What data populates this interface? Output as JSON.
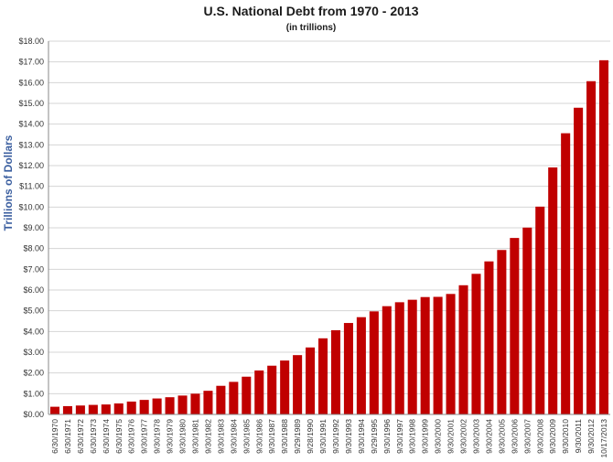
{
  "chart_data": {
    "type": "bar",
    "title": "U.S. National Debt from 1970 - 2013",
    "subtitle": "(in trillions)",
    "xlabel": "",
    "ylabel": "Trillions  of  Dollars",
    "ylim": [
      0,
      18
    ],
    "ytick_step": 1,
    "ytick_prefix": "$",
    "grid": true,
    "bar_color": "#c00000",
    "categories": [
      "6/30/1970",
      "6/30/1971",
      "6/30/1972",
      "6/30/1973",
      "6/30/1974",
      "6/30/1975",
      "6/30/1976",
      "9/30/1977",
      "9/30/1978",
      "9/30/1979",
      "9/30/1980",
      "9/30/1981",
      "9/30/1982",
      "9/30/1983",
      "9/30/1984",
      "9/30/1985",
      "9/30/1986",
      "9/30/1987",
      "9/30/1988",
      "9/29/1989",
      "9/28/1990",
      "9/30/1991",
      "9/30/1992",
      "9/30/1993",
      "9/30/1994",
      "9/29/1995",
      "9/30/1996",
      "9/30/1997",
      "9/30/1998",
      "9/30/1999",
      "9/30/2000",
      "9/30/2001",
      "9/30/2002",
      "9/30/2003",
      "9/30/2004",
      "9/30/2005",
      "9/30/2006",
      "9/30/2007",
      "9/30/2008",
      "9/30/2009",
      "9/30/2010",
      "9/30/2011",
      "9/30/2012",
      "10/17/2013"
    ],
    "values": [
      0.37,
      0.4,
      0.43,
      0.46,
      0.48,
      0.53,
      0.62,
      0.7,
      0.77,
      0.83,
      0.91,
      1.0,
      1.14,
      1.38,
      1.57,
      1.82,
      2.12,
      2.35,
      2.6,
      2.86,
      3.23,
      3.67,
      4.06,
      4.41,
      4.69,
      4.97,
      5.22,
      5.41,
      5.53,
      5.66,
      5.67,
      5.81,
      6.23,
      6.78,
      7.38,
      7.93,
      8.51,
      9.01,
      10.02,
      11.91,
      13.56,
      14.79,
      16.07,
      17.08
    ]
  }
}
